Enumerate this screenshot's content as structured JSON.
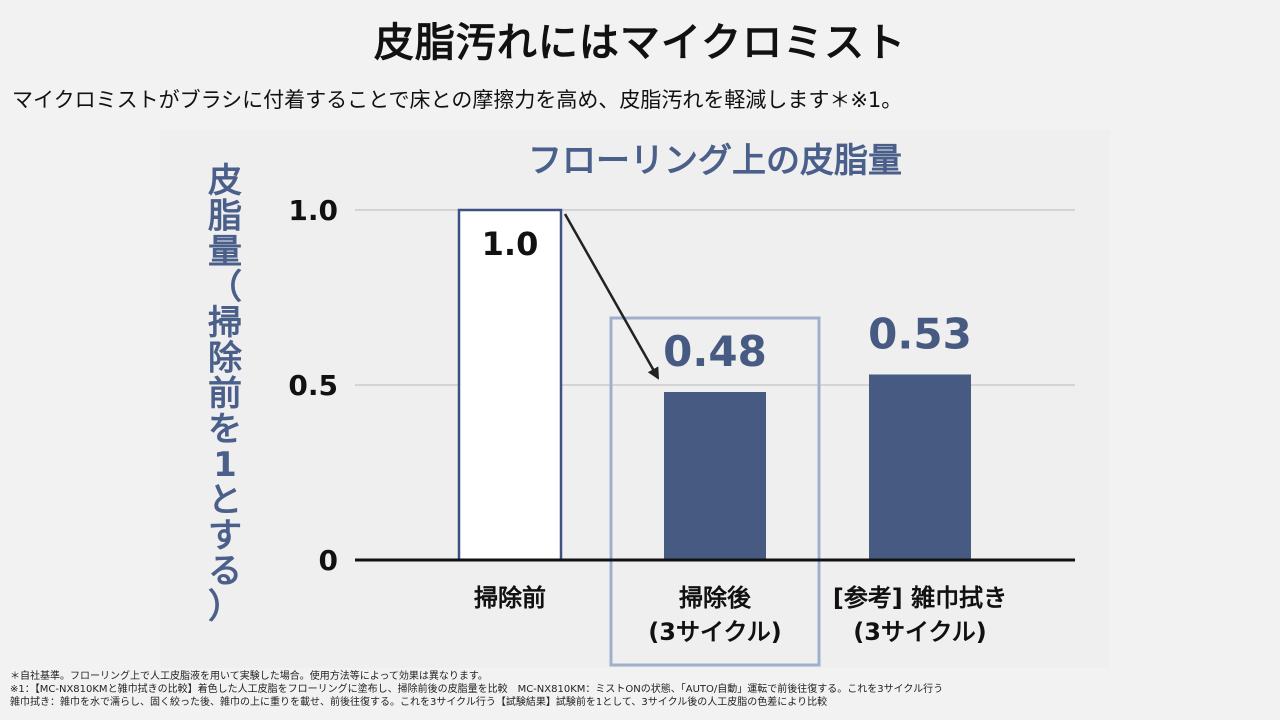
{
  "header": {
    "title": "皮脂汚れにはマイクロミスト",
    "lead": "マイクロミストがブラシに付着することで床との摩擦力を高め、皮脂汚れを軽減します＊※1。"
  },
  "chart_data": {
    "type": "bar",
    "title": "フローリング上の皮脂量",
    "ylabel": "皮脂量（掃除前を1とする）",
    "xlabel": "",
    "ylim": [
      0,
      1.0
    ],
    "yticks": [
      {
        "value": 0,
        "label": "0"
      },
      {
        "value": 0.5,
        "label": "0.5"
      },
      {
        "value": 1.0,
        "label": "1.0"
      }
    ],
    "grid": true,
    "categories": [
      {
        "line1": "掃除前",
        "line2": ""
      },
      {
        "line1": "掃除後",
        "line2": "(3サイクル)"
      },
      {
        "line1": "[参考] 雑巾拭き",
        "line2": "(3サイクル)"
      }
    ],
    "values": [
      1.0,
      0.48,
      0.53
    ],
    "data_labels": [
      "1.0",
      "0.48",
      "0.53"
    ],
    "highlighted_category": 1,
    "colors": {
      "title": "#4a5f8a",
      "ylabel": "#4a5f8a",
      "bar_fill": "#475b82",
      "bar_outline": "#3d5280",
      "highlight_box": "#9fb0cc",
      "axis": "#111111",
      "grid": "#cccccc",
      "arrow": "#222222"
    }
  },
  "footnotes": [
    "＊自社基準。フローリング上で人工皮脂液を用いて実験した場合。使用方法等によって効果は異なります。",
    "※1：【MC-NX810KMと雑巾拭きの比較】着色した人工皮脂をフローリングに塗布し、掃除前後の皮脂量を比較　MC-NX810KM：ミストONの状態、「AUTO/自動」運転で前後往復する。これを3サイクル行う",
    "雑巾拭き：雑巾を水で濡らし、固く絞った後、雑巾の上に重りを載せ、前後往復する。これを3サイクル行う【試験結果】試験前を1として、3サイクル後の人工皮脂の色差により比較"
  ]
}
